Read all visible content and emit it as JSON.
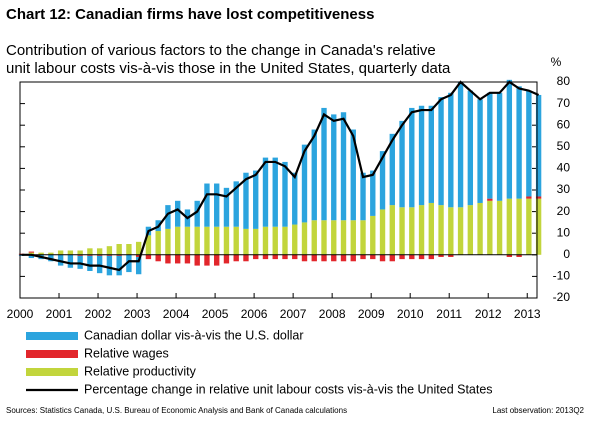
{
  "chart_data": {
    "type": "bar",
    "title": "Chart 12: Canadian firms have lost competitiveness",
    "subtitle": [
      "Contribution of various factors to the change in Canada's relative",
      "unit labour costs vis-à-vis those in the United States, quarterly data"
    ],
    "y_unit": "%",
    "x": [
      2000,
      2000.25,
      2000.5,
      2000.75,
      2001,
      2001.25,
      2001.5,
      2001.75,
      2002,
      2002.25,
      2002.5,
      2002.75,
      2003,
      2003.25,
      2003.5,
      2003.75,
      2004,
      2004.25,
      2004.5,
      2004.75,
      2005,
      2005.25,
      2005.5,
      2005.75,
      2006,
      2006.25,
      2006.5,
      2006.75,
      2007,
      2007.25,
      2007.5,
      2007.75,
      2008,
      2008.25,
      2008.5,
      2008.75,
      2009,
      2009.25,
      2009.5,
      2009.75,
      2010,
      2010.25,
      2010.5,
      2010.75,
      2011,
      2011.25,
      2011.5,
      2011.75,
      2012,
      2012.25,
      2012.5,
      2012.75,
      2013,
      2013.25
    ],
    "xlim": [
      2000,
      2013.25
    ],
    "xticks": [
      2000,
      2001,
      2002,
      2003,
      2004,
      2005,
      2006,
      2007,
      2008,
      2009,
      2010,
      2011,
      2012,
      2013
    ],
    "ylim": [
      -20,
      80
    ],
    "yticks": [
      -20,
      -10,
      0,
      10,
      20,
      30,
      40,
      50,
      60,
      70,
      80
    ],
    "stacked": true,
    "series": [
      {
        "name": "Relative productivity",
        "type": "bar",
        "color": "#c2d53c",
        "values": [
          0,
          1,
          1,
          1,
          2,
          2,
          2,
          3,
          3,
          4,
          5,
          5,
          6,
          9,
          11,
          12,
          13,
          13,
          13,
          13,
          13,
          13,
          13,
          12,
          12,
          13,
          13,
          13,
          14,
          15,
          16,
          16,
          16,
          16,
          16,
          16,
          18,
          21,
          23,
          22,
          22,
          23,
          24,
          23,
          22,
          22,
          23,
          24,
          25,
          25,
          26,
          26,
          26,
          26
        ]
      },
      {
        "name": "Relative wages",
        "type": "bar",
        "color": "#e2262b",
        "values": [
          0.5,
          0.5,
          0,
          0,
          0,
          0,
          -0.5,
          -0.5,
          -0.5,
          -0.5,
          -0.5,
          0,
          -1,
          -2,
          -3,
          -4,
          -4,
          -4,
          -5,
          -5,
          -5,
          -4,
          -3,
          -3,
          -2,
          -2,
          -2,
          -2,
          -2,
          -3,
          -3,
          -3,
          -3,
          -3,
          -3,
          -2,
          -2,
          -3,
          -3,
          -2,
          -2,
          -2,
          -2,
          -1,
          -1,
          0,
          0,
          0,
          1,
          0,
          -1,
          -1,
          1,
          1
        ]
      },
      {
        "name": "Canadian dollar vis-à-vis the U.S. dollar",
        "type": "bar",
        "color": "#2ba4de",
        "values": [
          -0.5,
          -1.5,
          -2,
          -3,
          -5,
          -6,
          -6,
          -7,
          -8,
          -9,
          -9,
          -8,
          -8,
          4,
          5,
          11,
          12,
          8,
          12,
          20,
          20,
          18,
          21,
          26,
          27,
          32,
          32,
          30,
          24,
          36,
          42,
          52,
          49,
          50,
          42,
          22,
          21,
          27,
          33,
          40,
          46,
          46,
          45,
          50,
          53,
          58,
          53,
          48,
          49,
          50,
          55,
          52,
          49,
          47
        ]
      },
      {
        "name": "Percentage change in relative unit labour costs vis-à-vis the United States",
        "type": "line",
        "color": "#000000",
        "values": [
          0,
          0,
          -1,
          -2,
          -3,
          -4,
          -4,
          -5,
          -5,
          -6,
          -7,
          -3,
          -3,
          11,
          13,
          19,
          21,
          17,
          20,
          28,
          28,
          27,
          31,
          35,
          37,
          43,
          43,
          41,
          36,
          48,
          55,
          65,
          62,
          63,
          55,
          36,
          37,
          45,
          53,
          60,
          66,
          67,
          67,
          72,
          74,
          80,
          76,
          72,
          75,
          75,
          80,
          77,
          76,
          74
        ]
      }
    ],
    "legend_order": [
      2,
      1,
      0,
      3
    ],
    "source": "Sources: Statistics Canada, U.S. Bureau of Economic Analysis and Bank of Canada calculations",
    "note": "Last observation: 2013Q2"
  }
}
